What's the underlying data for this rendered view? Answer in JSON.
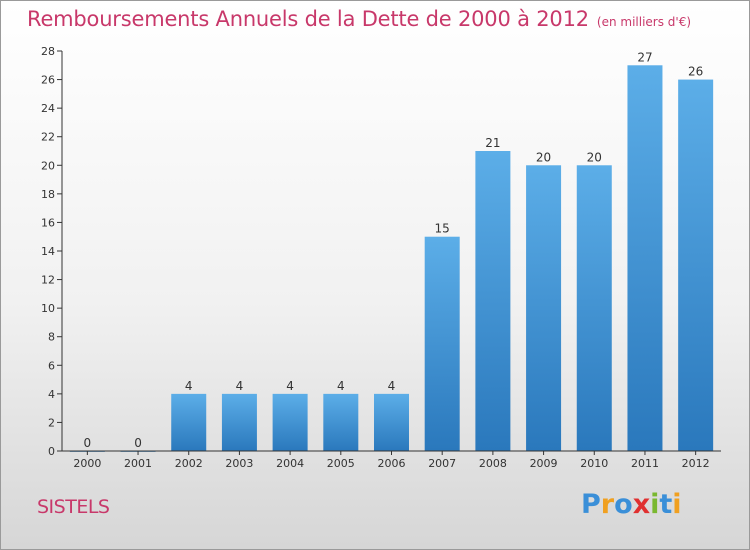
{
  "header": {
    "title": "Remboursements Annuels de la Dette de 2000 à 2012",
    "subtitle": "(en milliers d'€)"
  },
  "place": "SISTELS",
  "logo": {
    "text": "Proxiti",
    "letters": [
      {
        "char": "P",
        "color": "#3a8fd8"
      },
      {
        "char": "r",
        "color": "#f0a020"
      },
      {
        "char": "o",
        "color": "#3a8fd8"
      },
      {
        "char": "x",
        "color": "#e03030"
      },
      {
        "char": "i",
        "color": "#7ab830"
      },
      {
        "char": "t",
        "color": "#3a8fd8"
      },
      {
        "char": "i",
        "color": "#f0a020"
      }
    ]
  },
  "colors": {
    "title": "#c8386a",
    "bar_top": "#5caee8",
    "bar_bottom": "#2a78bc",
    "axis": "#333333",
    "text": "#333333"
  },
  "chart_data": {
    "type": "bar",
    "categories": [
      "2000",
      "2001",
      "2002",
      "2003",
      "2004",
      "2005",
      "2006",
      "2007",
      "2008",
      "2009",
      "2010",
      "2011",
      "2012"
    ],
    "values": [
      0,
      0,
      4,
      4,
      4,
      4,
      4,
      15,
      21,
      20,
      20,
      27,
      26
    ],
    "ylim": [
      0,
      28
    ],
    "yticks": [
      0,
      2,
      4,
      6,
      8,
      10,
      12,
      14,
      16,
      18,
      20,
      22,
      24,
      26,
      28
    ],
    "grid": false
  }
}
